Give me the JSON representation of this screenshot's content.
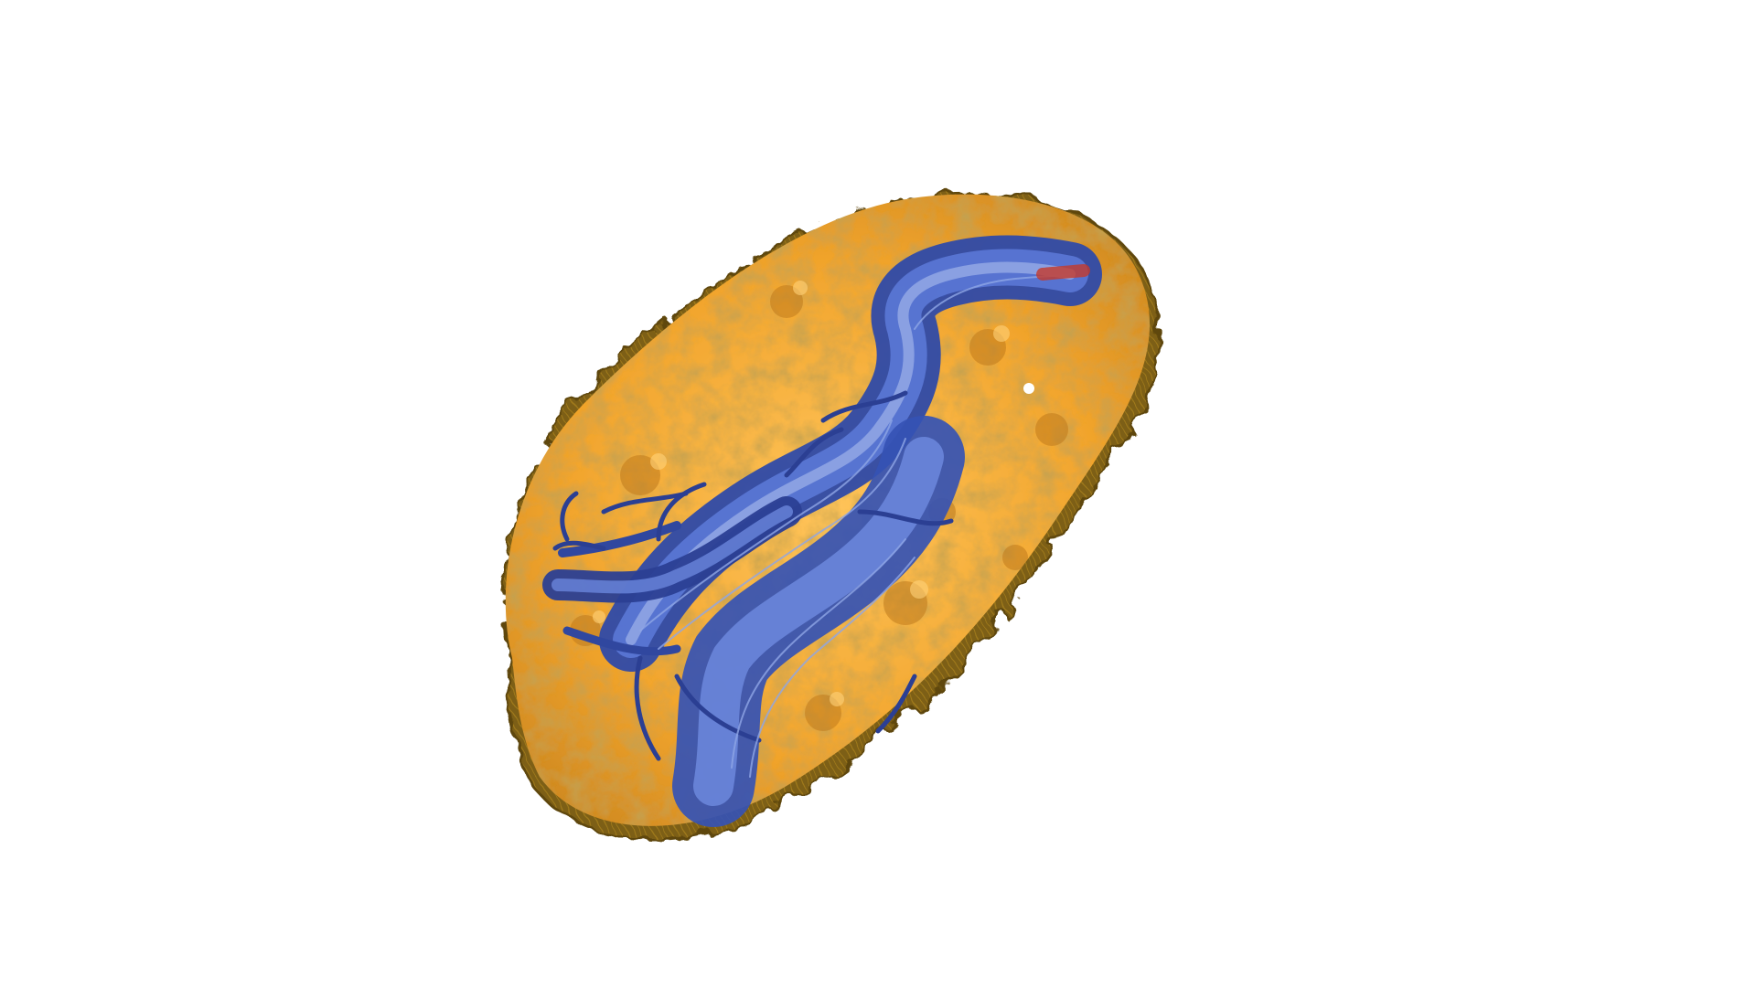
{
  "scene": {
    "background": "#ffffff",
    "colors": {
      "shell_dark": "#6b5210",
      "shell_mid": "#8d6c18",
      "shell_rim": "#a57f1f",
      "grain_base": "#f1a42c",
      "grain_light": "#ffc45a",
      "grain_shadow": "#b9741a",
      "flow_dark": "#2b3f93",
      "flow_mid": "#3f5bbf",
      "flow_light": "#8fa6e6",
      "flow_highlight": "#c7d3f5",
      "velocity_hot": "#c43a2a"
    },
    "objects": [
      {
        "name": "cylinder-shell",
        "icon": "porous-cylinder-icon"
      },
      {
        "name": "pore-flow-streamlines",
        "icon": "streamline-bundle-icon"
      }
    ]
  }
}
